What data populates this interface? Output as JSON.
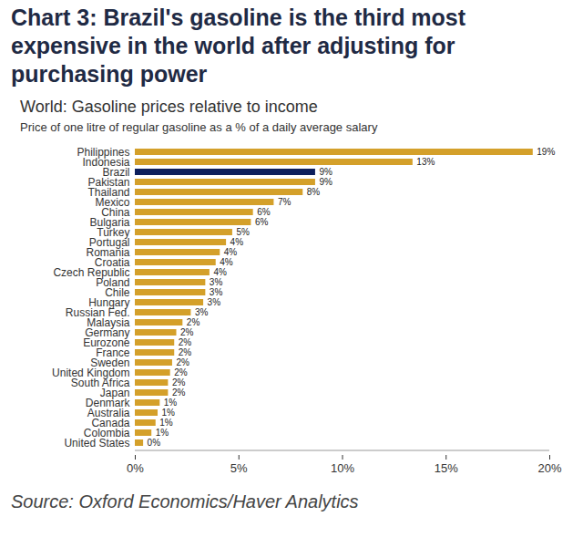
{
  "chart_data": {
    "type": "bar",
    "orientation": "horizontal",
    "title": "Chart 3: Brazil's gasoline is the third most expensive in the world after adjusting for purchasing power",
    "subtitle": [
      "World: Gasoline prices relative to income",
      "Price of one litre of regular gasoline as a % of a daily average salary"
    ],
    "source": "Source: Oxford Economics/Haver Analytics",
    "categories": [
      "Philippines",
      "Indonesia",
      "Brazil",
      "Pakistan",
      "Thailand",
      "Mexico",
      "China",
      "Bulgaria",
      "Turkey",
      "Portugal",
      "Romania",
      "Croatia",
      "Czech Republic",
      "Poland",
      "Chile",
      "Hungary",
      "Russian Fed.",
      "Malaysia",
      "Germany",
      "Eurozone",
      "France",
      "Sweden",
      "United Kingdom",
      "South Africa",
      "Japan",
      "Denmark",
      "Australia",
      "Canada",
      "Colombia",
      "United States"
    ],
    "values": [
      19.2,
      13.4,
      8.7,
      8.7,
      8.1,
      6.7,
      5.7,
      5.6,
      4.7,
      4.4,
      4.1,
      3.9,
      3.6,
      3.4,
      3.4,
      3.3,
      2.7,
      2.3,
      2.0,
      1.9,
      1.9,
      1.8,
      1.7,
      1.6,
      1.6,
      1.2,
      1.1,
      1.0,
      0.8,
      0.4
    ],
    "value_labels": [
      "19%",
      "13%",
      "9%",
      "9%",
      "8%",
      "7%",
      "6%",
      "6%",
      "5%",
      "4%",
      "4%",
      "4%",
      "4%",
      "3%",
      "3%",
      "3%",
      "3%",
      "2%",
      "2%",
      "2%",
      "2%",
      "2%",
      "2%",
      "2%",
      "2%",
      "1%",
      "1%",
      "1%",
      "1%",
      "0%"
    ],
    "data_labels": true,
    "colors": [
      "#d4a02a",
      "#d4a02a",
      "#0d1f5c",
      "#d4a02a",
      "#d4a02a",
      "#d4a02a",
      "#d4a02a",
      "#d4a02a",
      "#d4a02a",
      "#d4a02a",
      "#d4a02a",
      "#d4a02a",
      "#d4a02a",
      "#d4a02a",
      "#d4a02a",
      "#d4a02a",
      "#d4a02a",
      "#d4a02a",
      "#d4a02a",
      "#d4a02a",
      "#d4a02a",
      "#d4a02a",
      "#d4a02a",
      "#d4a02a",
      "#d4a02a",
      "#d4a02a",
      "#d4a02a",
      "#d4a02a",
      "#d4a02a",
      "#d4a02a"
    ],
    "xlim": [
      0,
      20
    ],
    "xticks": [
      {
        "value": 0,
        "label": "0%"
      },
      {
        "value": 5,
        "label": "5%"
      },
      {
        "value": 10,
        "label": "10%"
      },
      {
        "value": 15,
        "label": "15%"
      },
      {
        "value": 20,
        "label": "20%"
      }
    ],
    "grid": false
  }
}
